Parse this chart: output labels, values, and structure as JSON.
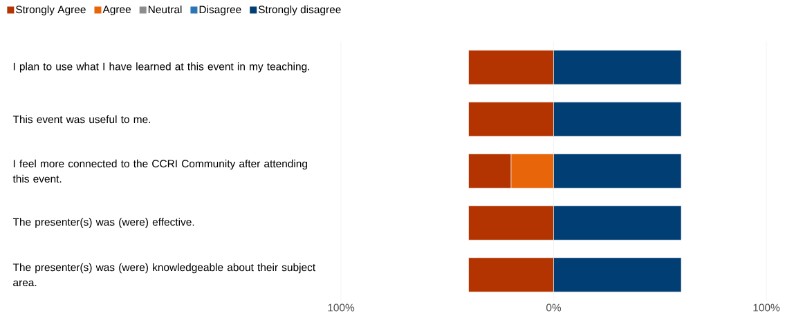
{
  "chart_data": {
    "type": "bar",
    "orientation": "horizontal",
    "categories": [
      "I plan to use what I have learned at this event in my teaching.",
      "This event was useful to me.",
      "I feel more connected to the CCRI Community after attending this event.",
      "The presenter(s) was (were) effective.",
      "The presenter(s) was (were) knowledgeable about their subject area."
    ],
    "series": [
      {
        "name": "Strongly Agree",
        "color": "#b33400",
        "values": [
          40,
          40,
          20,
          40,
          40
        ],
        "base": [
          -40,
          -40,
          -40,
          -40,
          -40
        ]
      },
      {
        "name": "Agree",
        "color": "#e8650a",
        "values": [
          0,
          0,
          20,
          0,
          0
        ],
        "base": [
          null,
          null,
          -20,
          null,
          null
        ]
      },
      {
        "name": "Neutral",
        "color": "#8c8c8c",
        "values": [
          0,
          0,
          0,
          0,
          0
        ]
      },
      {
        "name": "Disagree",
        "color": "#2e75b6",
        "values": [
          0,
          0,
          0,
          0,
          0
        ]
      },
      {
        "name": "Strongly disagree",
        "color": "#003e73",
        "values": [
          60,
          60,
          60,
          60,
          60
        ],
        "base": [
          0,
          0,
          0,
          0,
          0
        ]
      }
    ],
    "xlim": [
      -100,
      100
    ],
    "xticks": [
      {
        "value": -100,
        "label": "100%"
      },
      {
        "value": 0,
        "label": "0%"
      },
      {
        "value": 100,
        "label": "100%"
      }
    ],
    "grid": "x",
    "legend": "top left"
  }
}
